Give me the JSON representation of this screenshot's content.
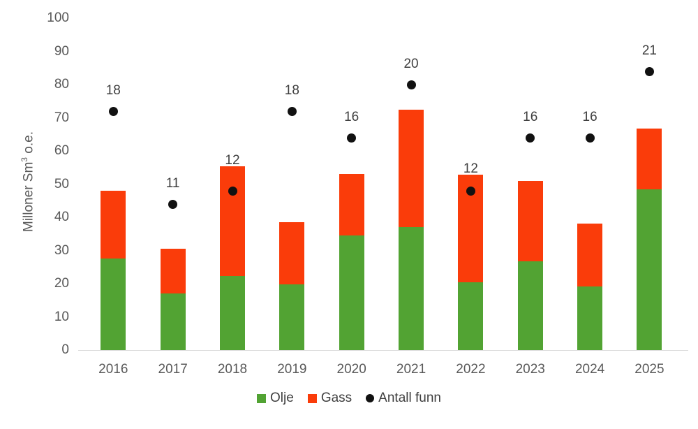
{
  "chart_data": {
    "type": "bar",
    "subtype": "stacked-column-with-points",
    "title": "",
    "categories": [
      "2016",
      "2017",
      "2018",
      "2019",
      "2020",
      "2021",
      "2022",
      "2023",
      "2024",
      "2025"
    ],
    "series": [
      {
        "name": "Olje",
        "color": "#52A333",
        "values": [
          27.5,
          17,
          22.3,
          19.8,
          34.5,
          37,
          20.4,
          26.8,
          19.2,
          48.4
        ]
      },
      {
        "name": "Gass",
        "color": "#FA3C0A",
        "values": [
          20.5,
          13.5,
          33,
          18.7,
          18.5,
          35.5,
          32.4,
          24.2,
          18.9,
          18.4
        ]
      }
    ],
    "points": {
      "name": "Antall funn",
      "color": "#111111",
      "values": [
        18,
        11,
        12,
        18,
        16,
        20,
        12,
        16,
        16,
        21
      ],
      "plot_scale": 4
    },
    "ylabel": "Milloner Sm³ o.e.",
    "ylabel_parts": [
      "Milloner Sm",
      "3",
      " o.e."
    ],
    "yticks": [
      0,
      10,
      20,
      30,
      40,
      50,
      60,
      70,
      80,
      90,
      100
    ],
    "ylim": [
      0,
      100
    ],
    "grid": false,
    "legend_position": "bottom",
    "legend": [
      "Olje",
      "Gass",
      "Antall funn"
    ]
  }
}
